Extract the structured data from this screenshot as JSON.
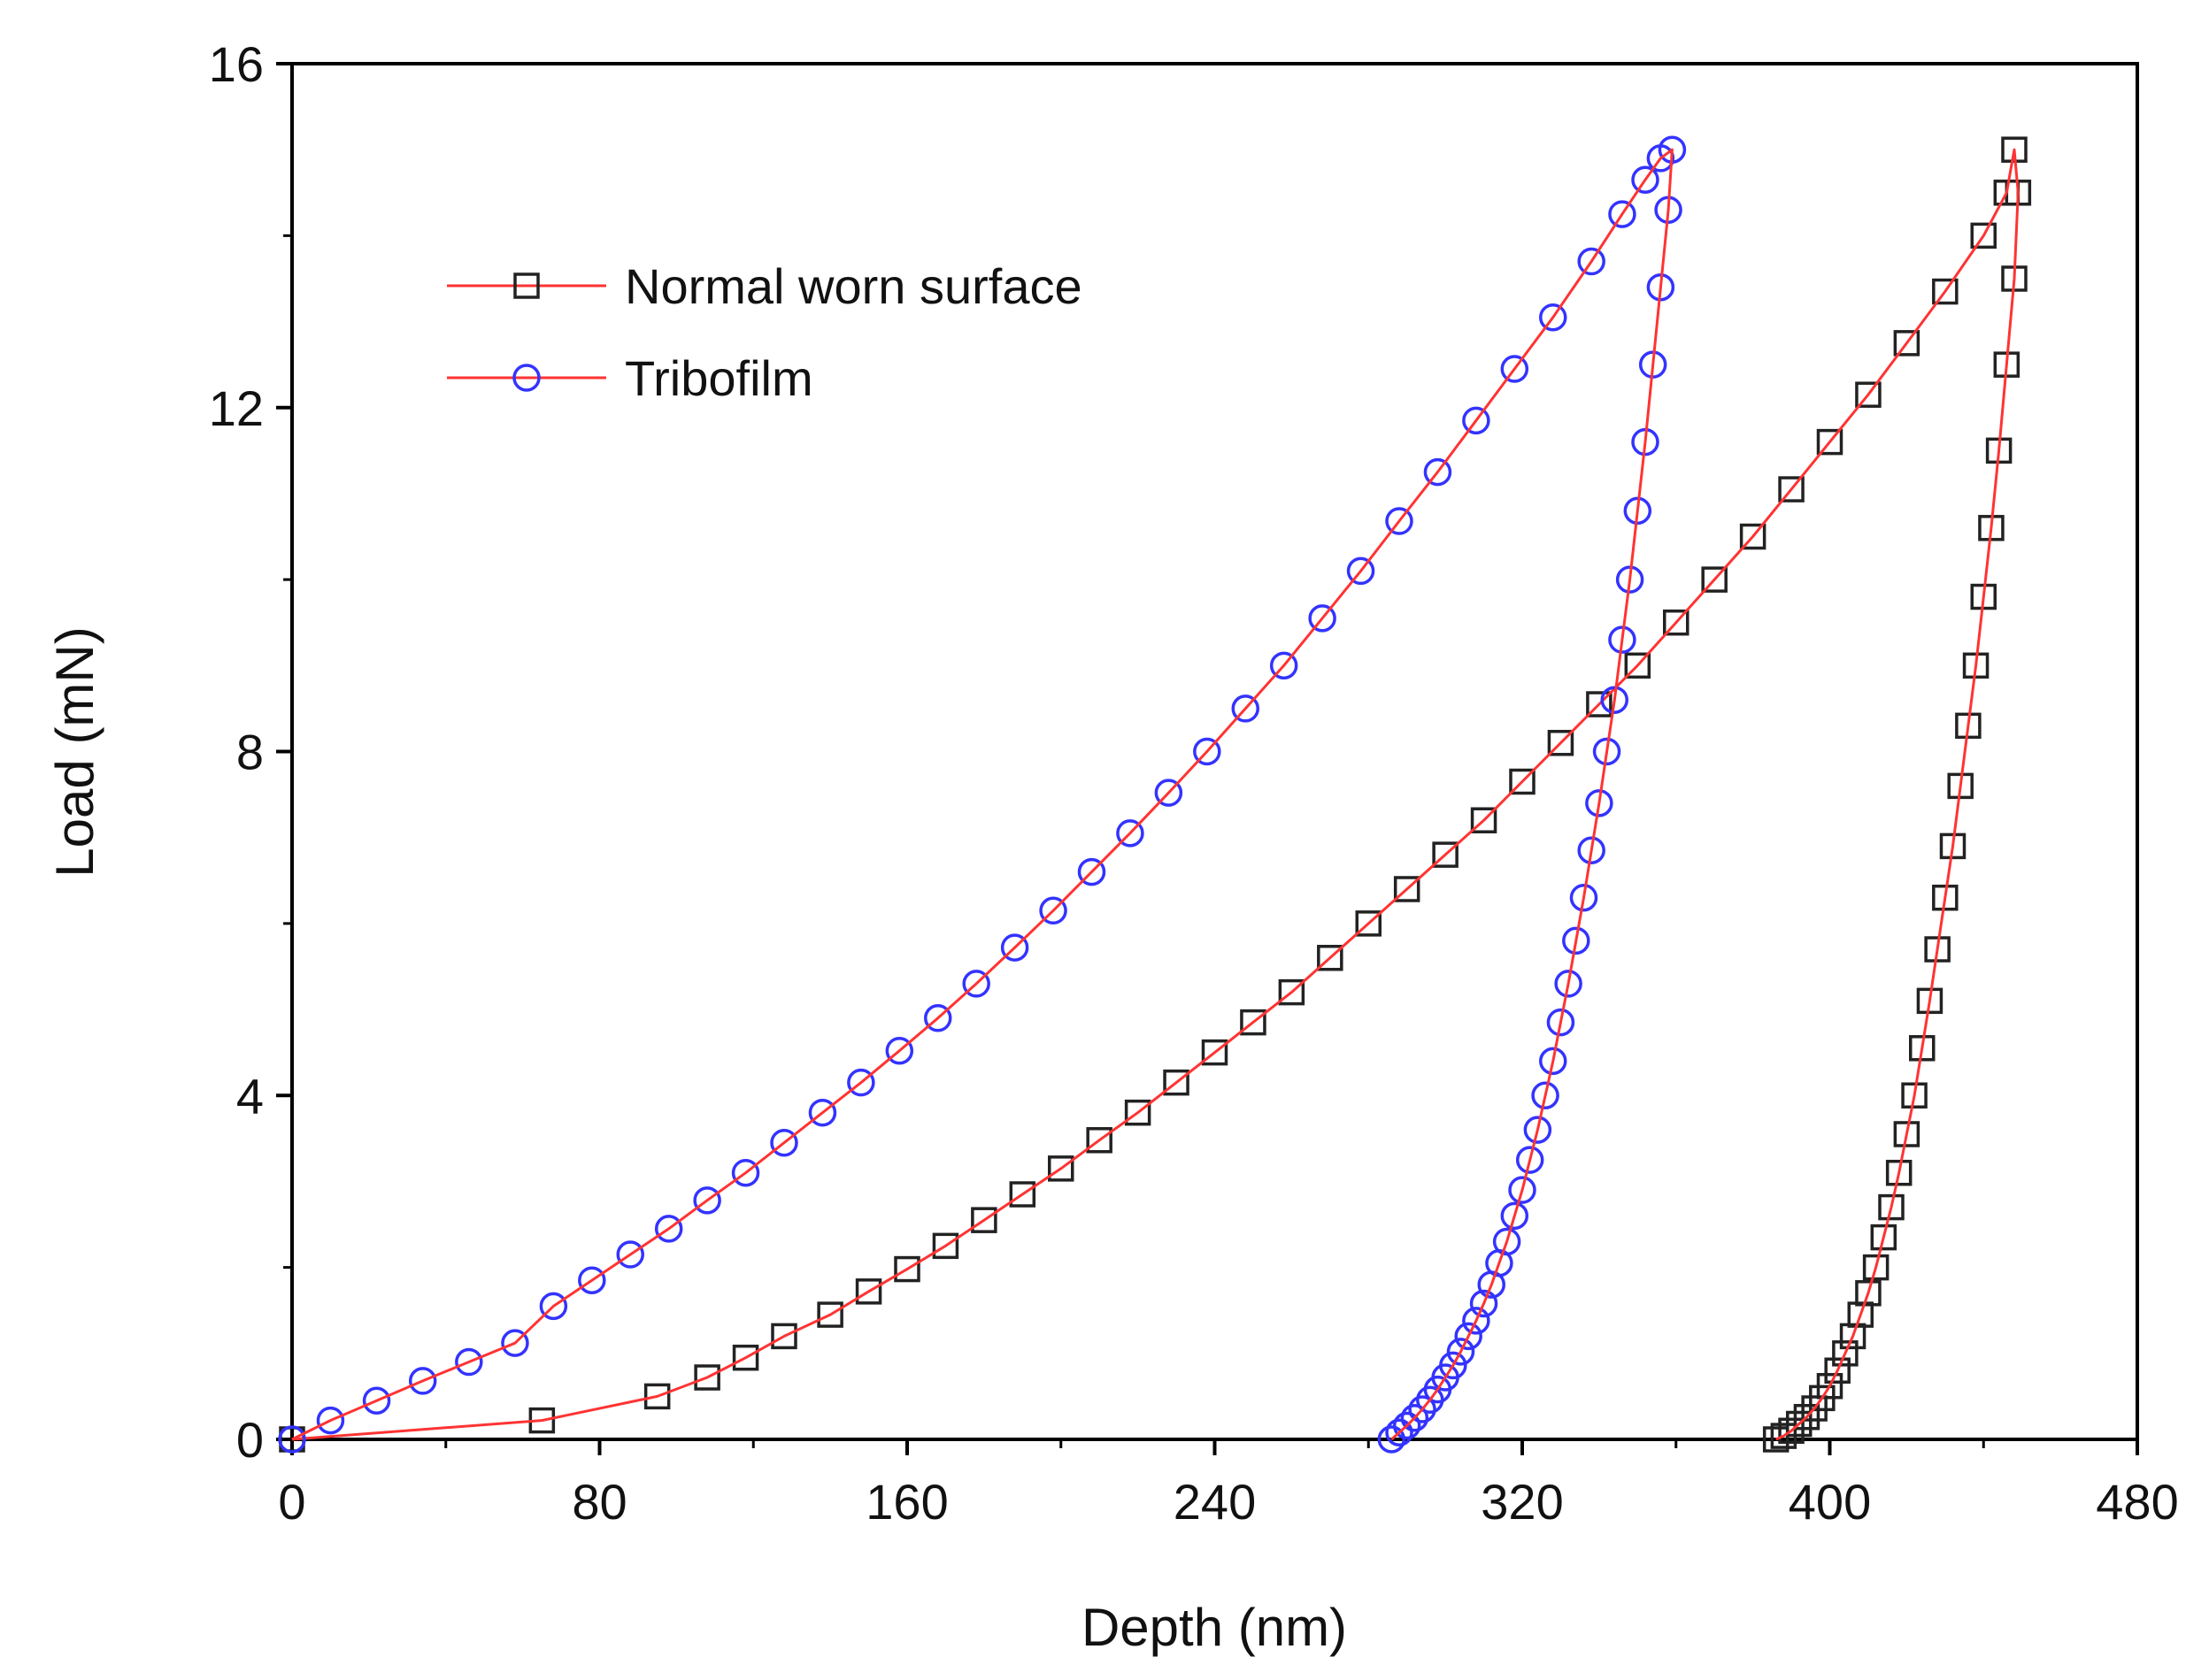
{
  "chart_data": {
    "type": "line",
    "title": "",
    "xlabel": "Depth (nm)",
    "ylabel": "Load (mN)",
    "xlim": [
      0,
      480
    ],
    "ylim": [
      0,
      16
    ],
    "xticks": [
      0,
      80,
      160,
      240,
      320,
      400,
      480
    ],
    "yticks": [
      0,
      4,
      8,
      12,
      16
    ],
    "grid": false,
    "legend_position": "top-left",
    "fit_line_color": "#ff3333",
    "series": [
      {
        "name": "Normal worn surface",
        "marker": "square",
        "marker_color": "#222222",
        "x": [
          0,
          65,
          95,
          108,
          118,
          128,
          140,
          150,
          160,
          170,
          180,
          190,
          200,
          210,
          220,
          230,
          240,
          250,
          260,
          270,
          280,
          290,
          300,
          310,
          320,
          330,
          340,
          350,
          360,
          370,
          380,
          390,
          400,
          410,
          420,
          430,
          440,
          446,
          448,
          449,
          448,
          446,
          444,
          442,
          440,
          438,
          436,
          434,
          432,
          430,
          428,
          426,
          424,
          422,
          420,
          418,
          416,
          414,
          412,
          410,
          408,
          406,
          404,
          402,
          400,
          398,
          396,
          394,
          392,
          390,
          388,
          386
        ],
        "y": [
          0,
          0.22,
          0.5,
          0.72,
          0.95,
          1.2,
          1.45,
          1.72,
          1.98,
          2.25,
          2.55,
          2.85,
          3.15,
          3.48,
          3.8,
          4.15,
          4.5,
          4.85,
          5.2,
          5.6,
          6.0,
          6.4,
          6.8,
          7.2,
          7.65,
          8.1,
          8.55,
          9.0,
          9.5,
          10.0,
          10.5,
          11.05,
          11.6,
          12.15,
          12.75,
          13.35,
          14.0,
          14.5,
          15.0,
          14.5,
          13.5,
          12.5,
          11.5,
          10.6,
          9.8,
          9.0,
          8.3,
          7.6,
          6.9,
          6.3,
          5.7,
          5.1,
          4.55,
          4.0,
          3.55,
          3.1,
          2.7,
          2.35,
          2.0,
          1.7,
          1.45,
          1.2,
          1.0,
          0.8,
          0.62,
          0.48,
          0.36,
          0.26,
          0.18,
          0.1,
          0.04,
          0
        ]
      },
      {
        "name": "Tribofilm",
        "marker": "circle",
        "marker_color": "#3333ff",
        "x": [
          0,
          10,
          22,
          34,
          46,
          58,
          68,
          78,
          88,
          98,
          108,
          118,
          128,
          138,
          148,
          158,
          168,
          178,
          188,
          198,
          208,
          218,
          228,
          238,
          248,
          258,
          268,
          278,
          288,
          298,
          308,
          318,
          328,
          338,
          346,
          352,
          356,
          359,
          358,
          356,
          354,
          352,
          350,
          348,
          346,
          344,
          342,
          340,
          338,
          336,
          334,
          332,
          330,
          328,
          326,
          324,
          322,
          320,
          318,
          316,
          314,
          312,
          310,
          308,
          306,
          304,
          302,
          300,
          298,
          296,
          294,
          292,
          290,
          288,
          286
        ],
        "y": [
          0,
          0.22,
          0.45,
          0.68,
          0.9,
          1.12,
          1.55,
          1.85,
          2.15,
          2.45,
          2.78,
          3.1,
          3.45,
          3.8,
          4.15,
          4.52,
          4.9,
          5.3,
          5.72,
          6.15,
          6.6,
          7.05,
          7.52,
          8.0,
          8.5,
          9.0,
          9.55,
          10.1,
          10.68,
          11.25,
          11.85,
          12.45,
          13.05,
          13.7,
          14.25,
          14.65,
          14.9,
          15.0,
          14.3,
          13.4,
          12.5,
          11.6,
          10.8,
          10.0,
          9.3,
          8.6,
          8.0,
          7.4,
          6.85,
          6.3,
          5.8,
          5.3,
          4.85,
          4.4,
          4.0,
          3.6,
          3.25,
          2.9,
          2.6,
          2.3,
          2.05,
          1.8,
          1.58,
          1.38,
          1.2,
          1.02,
          0.86,
          0.72,
          0.58,
          0.46,
          0.35,
          0.25,
          0.16,
          0.08,
          0
        ]
      }
    ]
  }
}
